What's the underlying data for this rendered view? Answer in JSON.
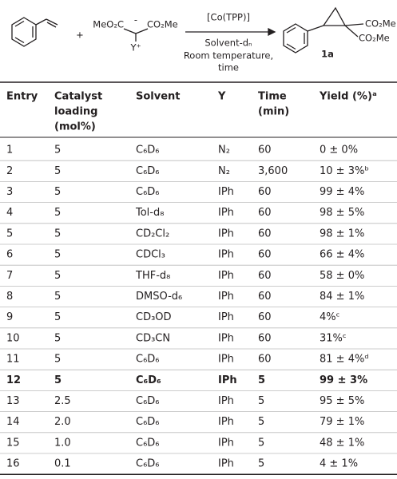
{
  "scheme": {
    "reagent_left": "MeO₂C",
    "reagent_right": "CO₂Me",
    "reagent_minus": "-",
    "reagent_y": "Y⁺",
    "plus": "+",
    "catalyst": "[Co(TPP)]",
    "solvent": "Solvent-dₙ",
    "conditions_1": "Room temperature,",
    "conditions_2": "time",
    "product_ester_1": "CO₂Me",
    "product_ester_2": "CO₂Me",
    "product_label": "1a"
  },
  "table": {
    "header": [
      "Entry",
      [
        "Catalyst",
        "loading",
        "(mol%)"
      ],
      "Solvent",
      "Y",
      "Time",
      [
        "(min)"
      ],
      "Yield (%)ᵃ"
    ],
    "rows": [
      [
        "1",
        "5",
        "C₆D₆",
        "N₂",
        "60",
        "0 ± 0%"
      ],
      [
        "2",
        "5",
        "C₆D₆",
        "N₂",
        "3,600",
        "10 ± 3%ᵇ"
      ],
      [
        "3",
        "5",
        "C₆D₆",
        "IPh",
        "60",
        "99 ± 4%"
      ],
      [
        "4",
        "5",
        "Tol-d₈",
        "IPh",
        "60",
        "98 ± 5%"
      ],
      [
        "5",
        "5",
        "CD₂Cl₂",
        "IPh",
        "60",
        "98 ± 1%"
      ],
      [
        "6",
        "5",
        "CDCl₃",
        "IPh",
        "60",
        "66 ± 4%"
      ],
      [
        "7",
        "5",
        "THF-d₈",
        "IPh",
        "60",
        "58 ± 0%"
      ],
      [
        "8",
        "5",
        "DMSO-d₆",
        "IPh",
        "60",
        "84 ± 1%"
      ],
      [
        "9",
        "5",
        "CD₃OD",
        "IPh",
        "60",
        "4%ᶜ"
      ],
      [
        "10",
        "5",
        "CD₃CN",
        "IPh",
        "60",
        "31%ᶜ"
      ],
      [
        "11",
        "5",
        "C₆D₆",
        "IPh",
        "60",
        "81 ± 4%ᵈ"
      ],
      [
        "12",
        "5",
        "C₆D₆",
        "IPh",
        "5",
        "99 ± 3%"
      ],
      [
        "13",
        "2.5",
        "C₆D₆",
        "IPh",
        "5",
        "95 ± 5%"
      ],
      [
        "14",
        "2.0",
        "C₆D₆",
        "IPh",
        "5",
        "79 ± 1%"
      ],
      [
        "15",
        "1.0",
        "C₆D₆",
        "IPh",
        "5",
        "48 ± 1%"
      ],
      [
        "16",
        "0.1",
        "C₆D₆",
        "IPh",
        "5",
        "4 ± 1%"
      ]
    ]
  }
}
